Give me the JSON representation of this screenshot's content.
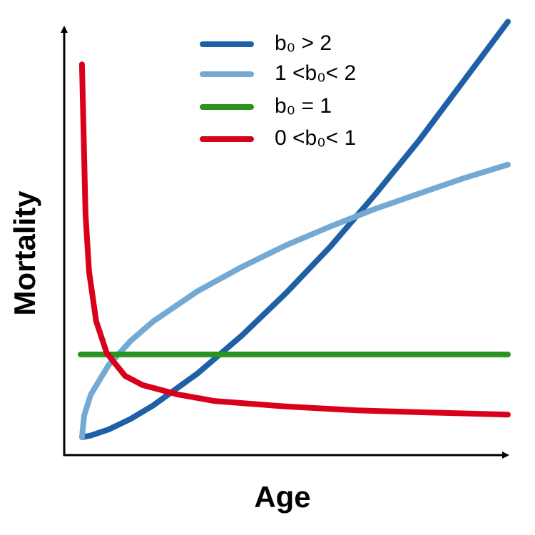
{
  "chart_data": {
    "type": "line",
    "xlabel": "Age",
    "ylabel": "Mortality",
    "xlim": [
      0,
      10
    ],
    "ylim": [
      0,
      10
    ],
    "series": [
      {
        "name": "b₀ > 2",
        "color": "#1f5fa5",
        "x": [
          0.4,
          0.45,
          0.6,
          1,
          1.5,
          2,
          3,
          4,
          5,
          6,
          7,
          8,
          9,
          10
        ],
        "values": [
          0.42,
          0.43,
          0.46,
          0.6,
          0.85,
          1.16,
          1.91,
          2.8,
          3.8,
          4.89,
          6.1,
          7.38,
          8.77,
          10.16
        ]
      },
      {
        "name": "1 <b₀< 2",
        "color": "#74a9d3",
        "x": [
          0.4,
          0.45,
          0.6,
          1,
          1.5,
          2,
          3,
          4,
          5,
          6,
          7,
          8,
          9,
          10
        ],
        "values": [
          0.42,
          0.93,
          1.42,
          2.11,
          2.68,
          3.13,
          3.84,
          4.41,
          4.92,
          5.36,
          5.77,
          6.13,
          6.49,
          6.81
        ]
      },
      {
        "name": "b₀ = 1",
        "color": "#2a9420",
        "x": [
          0.37,
          10
        ],
        "values": [
          2.36,
          2.36
        ]
      },
      {
        "name": "0 <b₀< 1",
        "color": "#d9001b",
        "x": [
          0.4,
          0.48,
          0.56,
          0.72,
          0.96,
          1.37,
          1.77,
          2.57,
          3.38,
          4.98,
          6.59,
          8.2,
          10
        ],
        "values": [
          9.16,
          5.65,
          4.31,
          3.14,
          2.39,
          1.86,
          1.64,
          1.42,
          1.27,
          1.14,
          1.05,
          1.0,
          0.95
        ]
      }
    ]
  }
}
